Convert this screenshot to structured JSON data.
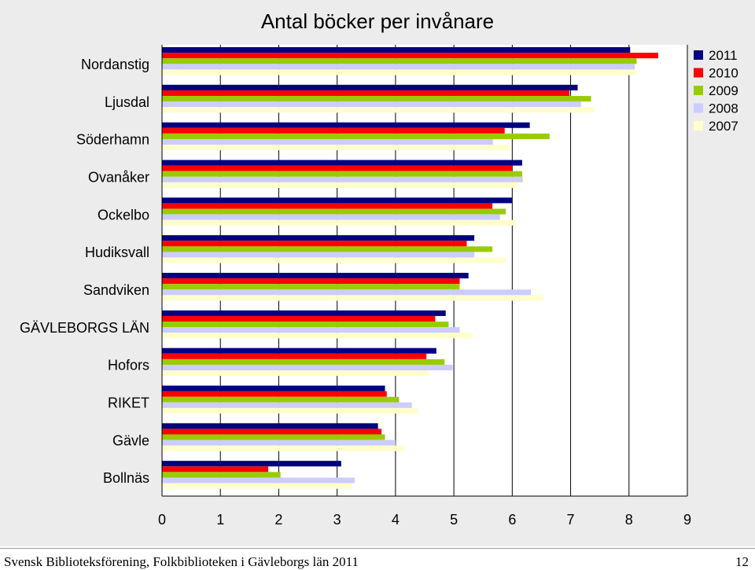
{
  "chart_data": {
    "type": "bar",
    "orientation": "horizontal",
    "title": "Antal böcker per invånare",
    "categories": [
      "Nordanstig",
      "Ljusdal",
      "Söderhamn",
      "Ovanåker",
      "Ockelbo",
      "Hudiksvall",
      "Sandviken",
      "GÄVLEBORGS LÄN",
      "Hofors",
      "RIKET",
      "Gävle",
      "Bollnäs"
    ],
    "series": [
      {
        "name": "2011",
        "color": "#000080",
        "values": [
          8.02,
          7.12,
          6.3,
          6.17,
          6.0,
          5.35,
          5.25,
          4.86,
          4.7,
          3.82,
          3.7,
          3.07
        ]
      },
      {
        "name": "2010",
        "color": "#ff0000",
        "values": [
          8.5,
          6.98,
          5.87,
          6.0,
          5.66,
          5.22,
          5.1,
          4.68,
          4.53,
          3.85,
          3.76,
          1.82
        ]
      },
      {
        "name": "2009",
        "color": "#99cc00",
        "values": [
          8.13,
          7.35,
          6.64,
          6.17,
          5.89,
          5.66,
          5.1,
          4.91,
          4.84,
          4.06,
          3.82,
          2.03
        ]
      },
      {
        "name": "2008",
        "color": "#ccccff",
        "values": [
          8.1,
          7.18,
          5.67,
          6.18,
          5.79,
          5.35,
          6.32,
          5.1,
          4.98,
          4.28,
          4.0,
          3.3
        ]
      },
      {
        "name": "2007",
        "color": "#ffffcc",
        "values": [
          8.12,
          7.4,
          5.96,
          6.1,
          6.06,
          5.89,
          6.53,
          5.32,
          4.58,
          4.38,
          4.14,
          3.26
        ]
      }
    ],
    "xlim": [
      0,
      9
    ],
    "xticks": [
      "0",
      "1",
      "2",
      "3",
      "4",
      "5",
      "6",
      "7",
      "8",
      "9"
    ],
    "grid": true,
    "legend_position": "top-right"
  },
  "footer": {
    "left": "Svensk Biblioteksförening, Folkbiblioteken i Gävleborgs län 2011",
    "page_number": "12"
  }
}
